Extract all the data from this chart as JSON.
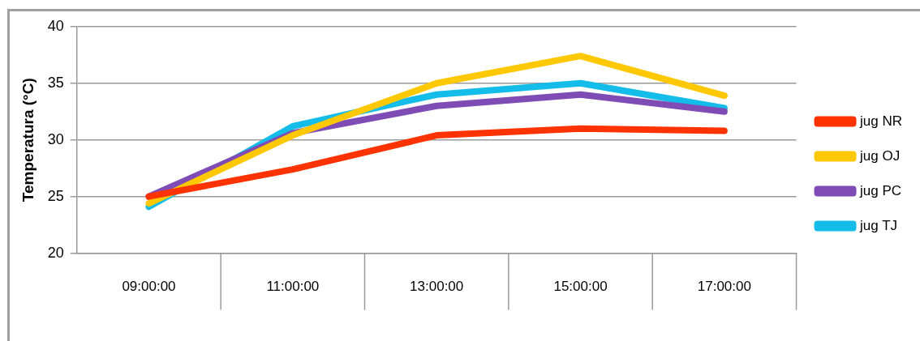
{
  "chart_data": {
    "type": "line",
    "ylabel": "Temperatura (°C)",
    "categories": [
      "09:00:00",
      "11:00:00",
      "13:00:00",
      "15:00:00",
      "17:00:00"
    ],
    "ylim": [
      20,
      40
    ],
    "yticks": [
      20,
      25,
      30,
      35,
      40
    ],
    "grid": "y",
    "legend": "right",
    "marker": "none",
    "line_style": "solid",
    "series": [
      {
        "name": "jug NR",
        "color": "#ff3300",
        "values": [
          25.0,
          27.4,
          30.4,
          31.0,
          30.8
        ]
      },
      {
        "name": "jug OJ",
        "color": "#ffc800",
        "values": [
          24.4,
          30.4,
          35.0,
          37.4,
          33.9
        ]
      },
      {
        "name": "jug PC",
        "color": "#7f4bb5",
        "values": [
          25.0,
          30.6,
          33.0,
          34.0,
          32.5
        ]
      },
      {
        "name": "jug TJ",
        "color": "#14bde9",
        "values": [
          24.1,
          31.2,
          34.0,
          35.0,
          32.8
        ]
      }
    ]
  }
}
